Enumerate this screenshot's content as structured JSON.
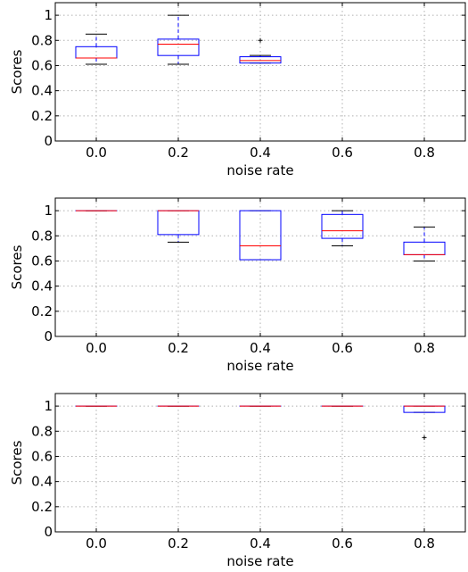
{
  "chart_data": [
    {
      "type": "box",
      "xlabel": "noise rate",
      "ylabel": "Scores",
      "xlim": [
        -0.1,
        0.9
      ],
      "ylim": [
        0,
        1.1
      ],
      "xticks": [
        "0.0",
        "0.2",
        "0.4",
        "0.6",
        "0.8"
      ],
      "yticks": [
        "0",
        "0.2",
        "0.4",
        "0.6",
        "0.8",
        "1"
      ],
      "grid": true,
      "colors": {
        "box": "#0000ff",
        "median": "#ff0000",
        "flier": "#000000"
      },
      "boxes": [
        {
          "x": 0.0,
          "whislo": 0.61,
          "q1": 0.66,
          "med": 0.66,
          "q3": 0.75,
          "whishi": 0.85,
          "fliers": []
        },
        {
          "x": 0.2,
          "whislo": 0.61,
          "q1": 0.68,
          "med": 0.77,
          "q3": 0.81,
          "whishi": 1.0,
          "fliers": []
        },
        {
          "x": 0.4,
          "whislo": 0.62,
          "q1": 0.62,
          "med": 0.64,
          "q3": 0.67,
          "whishi": 0.68,
          "fliers": [
            0.8
          ]
        }
      ]
    },
    {
      "type": "box",
      "xlabel": "noise rate",
      "ylabel": "Scores",
      "xlim": [
        -0.1,
        0.9
      ],
      "ylim": [
        0,
        1.1
      ],
      "xticks": [
        "0.0",
        "0.2",
        "0.4",
        "0.6",
        "0.8"
      ],
      "yticks": [
        "0",
        "0.2",
        "0.4",
        "0.6",
        "0.8",
        "1"
      ],
      "grid": true,
      "colors": {
        "box": "#0000ff",
        "median": "#ff0000",
        "flier": "#000000"
      },
      "boxes": [
        {
          "x": 0.0,
          "whislo": 1.0,
          "q1": 1.0,
          "med": 1.0,
          "q3": 1.0,
          "whishi": 1.0,
          "fliers": []
        },
        {
          "x": 0.2,
          "whislo": 0.75,
          "q1": 0.81,
          "med": 1.0,
          "q3": 1.0,
          "whishi": 1.0,
          "fliers": []
        },
        {
          "x": 0.4,
          "whislo": 0.61,
          "q1": 0.61,
          "med": 0.72,
          "q3": 1.0,
          "whishi": 1.0,
          "fliers": []
        },
        {
          "x": 0.6,
          "whislo": 0.72,
          "q1": 0.78,
          "med": 0.84,
          "q3": 0.97,
          "whishi": 1.0,
          "fliers": []
        },
        {
          "x": 0.8,
          "whislo": 0.6,
          "q1": 0.65,
          "med": 0.65,
          "q3": 0.75,
          "whishi": 0.87,
          "fliers": []
        }
      ]
    },
    {
      "type": "box",
      "xlabel": "noise rate",
      "ylabel": "Scores",
      "xlim": [
        -0.1,
        0.9
      ],
      "ylim": [
        0,
        1.1
      ],
      "xticks": [
        "0.0",
        "0.2",
        "0.4",
        "0.6",
        "0.8"
      ],
      "yticks": [
        "0",
        "0.2",
        "0.4",
        "0.6",
        "0.8",
        "1"
      ],
      "grid": true,
      "colors": {
        "box": "#0000ff",
        "median": "#ff0000",
        "flier": "#000000"
      },
      "boxes": [
        {
          "x": 0.0,
          "whislo": 1.0,
          "q1": 1.0,
          "med": 1.0,
          "q3": 1.0,
          "whishi": 1.0,
          "fliers": []
        },
        {
          "x": 0.2,
          "whislo": 1.0,
          "q1": 1.0,
          "med": 1.0,
          "q3": 1.0,
          "whishi": 1.0,
          "fliers": []
        },
        {
          "x": 0.4,
          "whislo": 1.0,
          "q1": 1.0,
          "med": 1.0,
          "q3": 1.0,
          "whishi": 1.0,
          "fliers": []
        },
        {
          "x": 0.6,
          "whislo": 1.0,
          "q1": 1.0,
          "med": 1.0,
          "q3": 1.0,
          "whishi": 1.0,
          "fliers": []
        },
        {
          "x": 0.8,
          "whislo": 0.95,
          "q1": 0.95,
          "med": 1.0,
          "q3": 1.0,
          "whishi": 1.0,
          "fliers": [
            0.75
          ]
        }
      ]
    }
  ]
}
